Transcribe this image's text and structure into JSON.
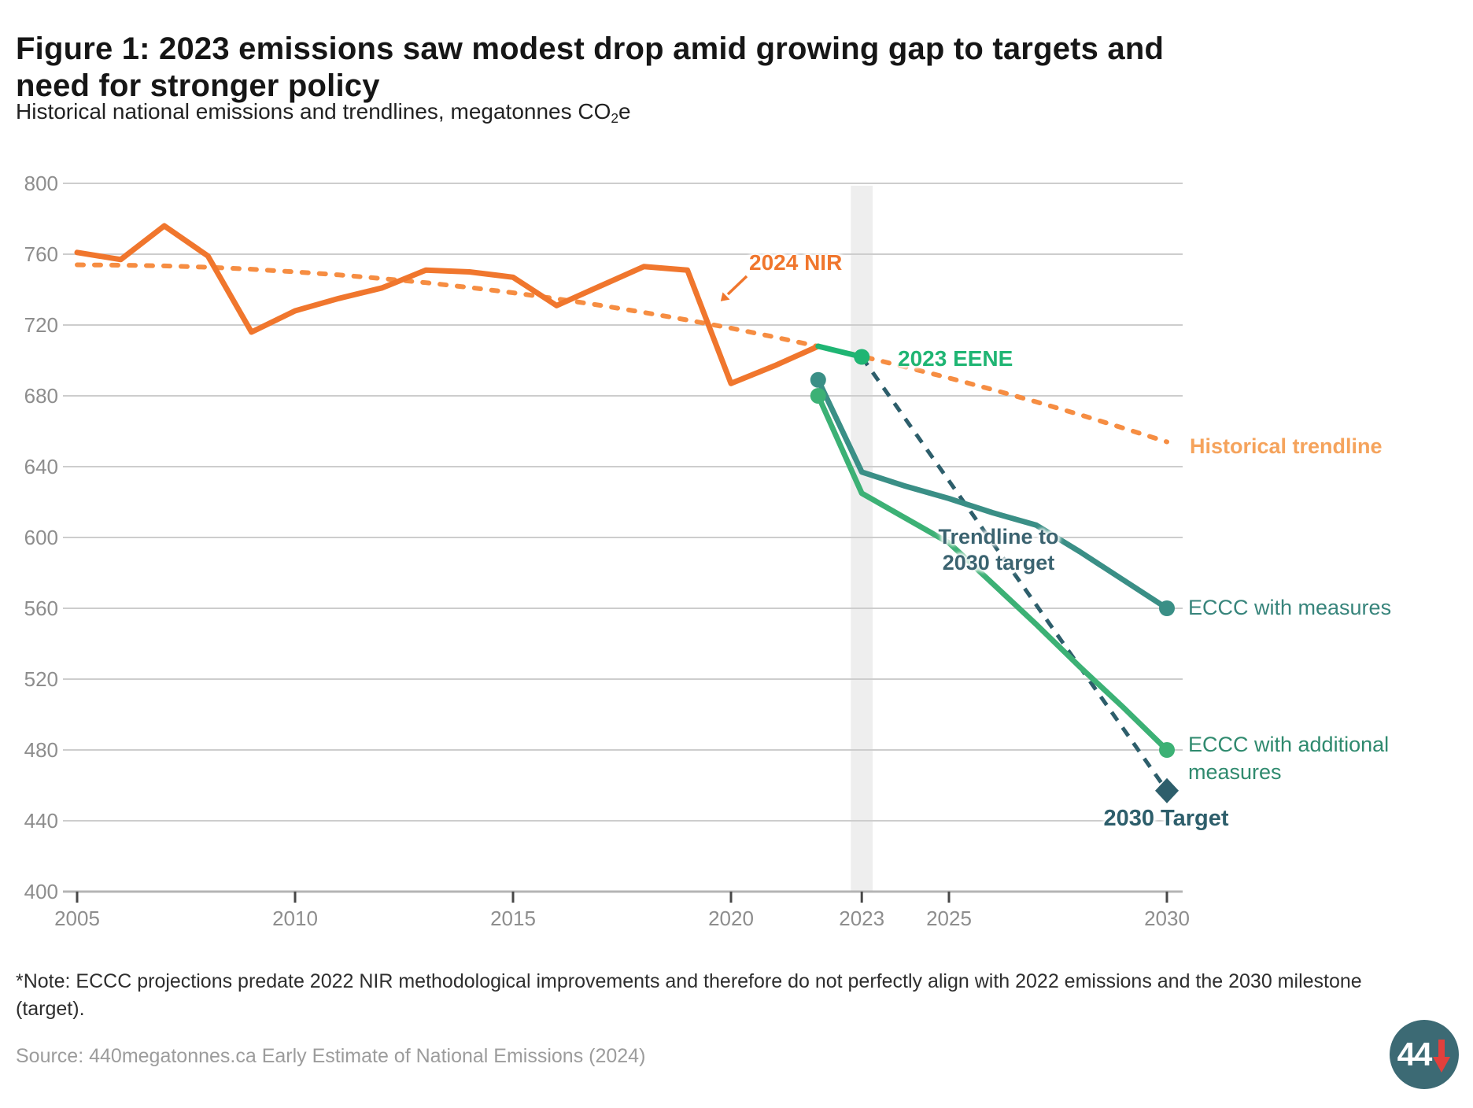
{
  "header": {
    "title_line1": "Figure 1: 2023 emissions saw modest drop amid growing gap to targets and",
    "title_line2": "need for stronger policy",
    "subtitle_prefix": "Historical national emissions and trendlines, megatonnes CO",
    "subtitle_sub": "2",
    "subtitle_suffix": "e"
  },
  "chart_data": {
    "type": "line",
    "title": "Figure 1: 2023 emissions saw modest drop amid growing gap to targets and need for stronger policy",
    "ylabel": "megatonnes CO2e",
    "xlim": [
      2005,
      2030
    ],
    "ylim": [
      400,
      800
    ],
    "grid": true,
    "highlight_band": {
      "x0": 2022.75,
      "x1": 2023.25,
      "color": "#eeeeee"
    },
    "x_axis": {
      "ticks": [
        {
          "v": 2005,
          "label": "2005"
        },
        {
          "v": 2010,
          "label": "2010"
        },
        {
          "v": 2015,
          "label": "2015"
        },
        {
          "v": 2020,
          "label": "2020"
        },
        {
          "v": 2023,
          "label": "2023"
        },
        {
          "v": 2025,
          "label": "2025"
        },
        {
          "v": 2030,
          "label": "2030"
        }
      ]
    },
    "y_axis": {
      "ticks": [
        400,
        440,
        480,
        520,
        560,
        600,
        640,
        680,
        720,
        760,
        800
      ]
    },
    "series": [
      {
        "name": "Historical trendline",
        "style": "dashed",
        "color": "#f68d42",
        "width": 6,
        "dash": "8 14",
        "linecap": "round",
        "points": [
          [
            2005,
            754
          ],
          [
            2006,
            753.8
          ],
          [
            2007,
            753.4
          ],
          [
            2008,
            752.6
          ],
          [
            2009,
            751.5
          ],
          [
            2010,
            750
          ],
          [
            2011,
            748.3
          ],
          [
            2012,
            746.2
          ],
          [
            2013,
            743.9
          ],
          [
            2014,
            741.2
          ],
          [
            2015,
            738.2
          ],
          [
            2016,
            734.8
          ],
          [
            2017,
            731.1
          ],
          [
            2018,
            727.1
          ],
          [
            2019,
            722.8
          ],
          [
            2020,
            718.2
          ],
          [
            2021,
            713.2
          ],
          [
            2022,
            707.9
          ],
          [
            2023,
            702.3
          ],
          [
            2024,
            696.3
          ],
          [
            2025,
            690.1
          ],
          [
            2026,
            683.5
          ],
          [
            2027,
            676.6
          ],
          [
            2028,
            669.4
          ],
          [
            2029,
            661.8
          ],
          [
            2030,
            654
          ]
        ]
      },
      {
        "name": "2024 NIR",
        "style": "solid",
        "color": "#f0762d",
        "width": 7,
        "points": [
          [
            2005,
            761
          ],
          [
            2006,
            757
          ],
          [
            2007,
            776
          ],
          [
            2008,
            759
          ],
          [
            2009,
            716
          ],
          [
            2010,
            728
          ],
          [
            2011,
            735
          ],
          [
            2012,
            741
          ],
          [
            2013,
            751
          ],
          [
            2014,
            750
          ],
          [
            2015,
            747
          ],
          [
            2016,
            731
          ],
          [
            2017,
            742
          ],
          [
            2018,
            753
          ],
          [
            2019,
            751
          ],
          [
            2020,
            687
          ],
          [
            2021,
            697
          ],
          [
            2022,
            708
          ]
        ]
      },
      {
        "name": "Trendline to 2030 target",
        "style": "dashed",
        "color": "#2d5e6b",
        "width": 5,
        "dash": "13 11",
        "linecap": "butt",
        "points": [
          [
            2023,
            702
          ],
          [
            2030,
            457
          ]
        ]
      },
      {
        "name": "ECCC with measures",
        "style": "solid",
        "color": "#3a8f86",
        "width": 7,
        "points": [
          [
            2022,
            689
          ],
          [
            2023,
            637
          ],
          [
            2024,
            629
          ],
          [
            2025,
            622
          ],
          [
            2026,
            614
          ],
          [
            2027,
            607
          ],
          [
            2028,
            592
          ],
          [
            2029,
            576
          ],
          [
            2030,
            560
          ]
        ],
        "dots": [
          [
            2022,
            689
          ],
          [
            2030,
            560
          ]
        ]
      },
      {
        "name": "ECCC with additional measures",
        "style": "solid",
        "color": "#3cb175",
        "width": 7,
        "points": [
          [
            2022,
            680
          ],
          [
            2023,
            625
          ],
          [
            2024,
            611
          ],
          [
            2025,
            597
          ],
          [
            2026,
            574
          ],
          [
            2027,
            551
          ],
          [
            2028,
            527
          ],
          [
            2029,
            504
          ],
          [
            2030,
            480
          ]
        ],
        "dots": [
          [
            2022,
            680
          ],
          [
            2030,
            480
          ]
        ]
      },
      {
        "name": "2023 EENE",
        "style": "solid",
        "color": "#1fb573",
        "width": 7,
        "points": [
          [
            2022,
            708
          ],
          [
            2023,
            702
          ]
        ],
        "dots": [
          [
            2023,
            702
          ]
        ]
      }
    ],
    "target_marker": {
      "x": 2030,
      "y": 457,
      "shape": "diamond",
      "color": "#2d5e6b",
      "label": "2030 Target"
    }
  },
  "annotations": {
    "nir_label": "2024 NIR",
    "eene_label": "2023 EENE",
    "hist_trend_label": "Historical trendline",
    "target_trend_line1": "Trendline to",
    "target_trend_line2": "2030 target",
    "eccc_wm_label": "ECCC with measures",
    "eccc_am_label": "ECCC with additional measures",
    "target_label": "2030 Target"
  },
  "footnote": "*Note: ECCC projections predate 2022 NIR methodological improvements and therefore do not perfectly align with 2022 emissions and the 2030 milestone (target).",
  "source": "Source: 440megatonnes.ca Early Estimate of National Emissions (2024)",
  "logo": {
    "text": "44",
    "icon": "down-arrow"
  },
  "colors": {
    "nir_orange": "#f0762d",
    "trendline_orange": "#f68d42",
    "eene_green": "#1fb573",
    "eccc_wm_teal": "#3a8f86",
    "eccc_am_green": "#3cb175",
    "target_navy": "#2d5e6b",
    "gridline": "#cdcdcd",
    "axis": "#b4b4b4",
    "tick_label": "#8d8d8d",
    "band": "#eeeeee",
    "logo_red": "#e2403c"
  }
}
